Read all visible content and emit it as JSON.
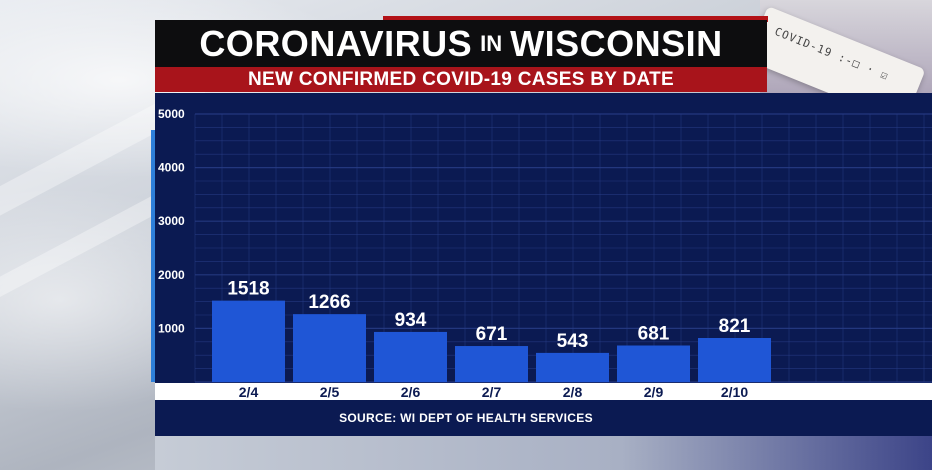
{
  "header": {
    "title_part1": "CORONAVIRUS",
    "title_part2": "IN",
    "title_part3": "WISCONSIN",
    "subtitle": "NEW CONFIRMED COVID-19 CASES BY DATE"
  },
  "background": {
    "test_card_text": "COVID-19 :-□ · ☑"
  },
  "source": "SOURCE: WI DEPT OF HEALTH SERVICES",
  "colors": {
    "bar": "#1f56d6",
    "panel": "#0b1a52",
    "grid": "#2a3f8a",
    "title_bg": "#0d0d0f",
    "subtitle_bg": "#a8141b",
    "accent": "#2e7fd9"
  },
  "chart_data": {
    "type": "bar",
    "title": "NEW CONFIRMED COVID-19 CASES BY DATE",
    "categories": [
      "2/4",
      "2/5",
      "2/6",
      "2/7",
      "2/8",
      "2/9",
      "2/10"
    ],
    "values": [
      1518,
      1266,
      934,
      671,
      543,
      681,
      821
    ],
    "ylim": [
      0,
      5000
    ],
    "yticks": [
      "5000",
      "4000",
      "3000",
      "2000",
      "1000"
    ],
    "xlabel": "",
    "ylabel": "",
    "grid": true,
    "data_labels": true
  }
}
